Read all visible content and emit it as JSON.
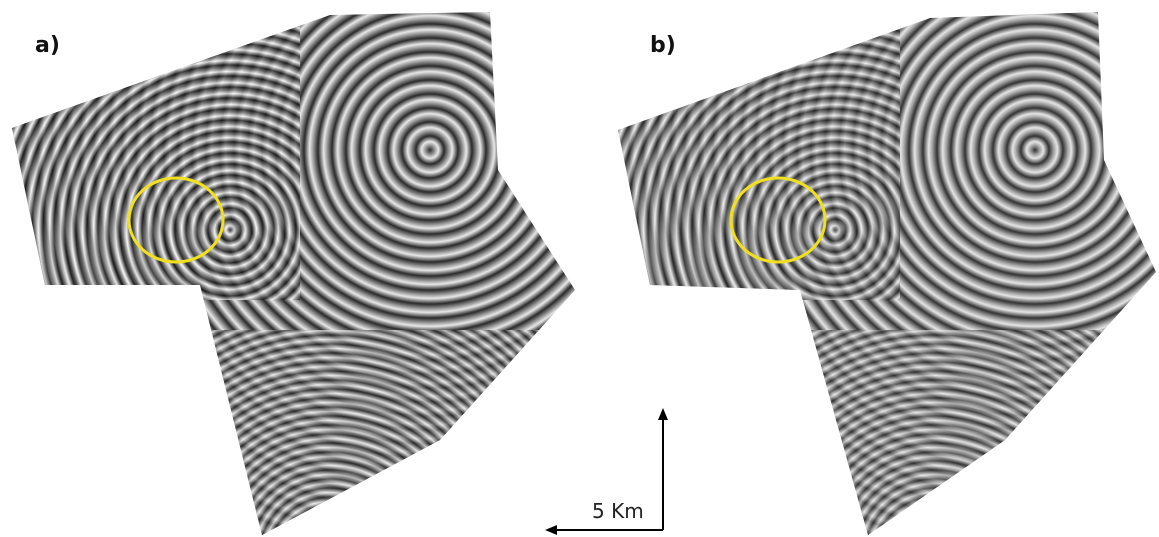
{
  "panels": [
    {
      "label": "a)"
    },
    {
      "label": "b)"
    }
  ],
  "scale_bar": {
    "label": "5 Km"
  }
}
